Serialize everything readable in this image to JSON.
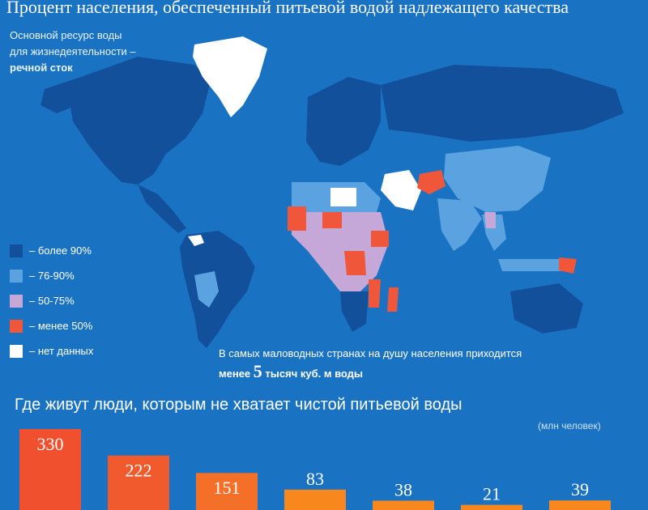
{
  "title": "Процент населения, обеспеченный питьевой водой надлежащего качества",
  "subtitle": {
    "line1": "Основной ресурс воды",
    "line2": "для жизнедеятельности –",
    "line3": "речной сток"
  },
  "legend": [
    {
      "label": "– более 90%",
      "color": "#13509b"
    },
    {
      "label": "– 76-90%",
      "color": "#5ba3e0"
    },
    {
      "label": "– 50-75%",
      "color": "#c6a8d8"
    },
    {
      "label": "– менее 50%",
      "color": "#f0573a"
    },
    {
      "label": "– нет данных",
      "color": "#ffffff"
    }
  ],
  "note": {
    "line1": "В самых маловодных странах на душу населения приходится",
    "prefix": "менее",
    "number": "5",
    "suffix": "тысяч куб. м воды"
  },
  "colors": {
    "ocean": "#1a73c2",
    "over90": "#13509b",
    "r76_90": "#5ba3e0",
    "r50_75": "#c6a8d8",
    "under50": "#f0573a",
    "nodata": "#ffffff"
  },
  "chart_data": {
    "type": "bar",
    "title": "Где живут люди, которым не хватает чистой питьевой воды",
    "unit": "(млн человек)",
    "values": [
      330,
      222,
      151,
      83,
      38,
      21,
      39
    ],
    "value_labels": [
      "330",
      "222",
      "151",
      "83",
      "38",
      "21",
      "39"
    ]
  }
}
